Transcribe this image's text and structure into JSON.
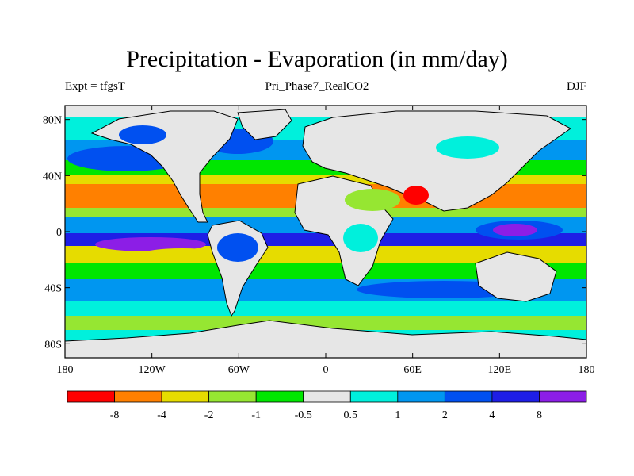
{
  "title": "Precipitation - Evaporation (in mm/day)",
  "subtitle_left": "Expt = tfgsT",
  "subtitle_center": "Pri_Phase7_RealCO2",
  "subtitle_right": "DJF",
  "colors": {
    "continent_fill": "#e6e6e6",
    "coastline": "#000000"
  },
  "chart_data": {
    "type": "heatmap",
    "xlim": [
      -180,
      180
    ],
    "ylim": [
      -90,
      90
    ],
    "x_ticks": [
      {
        "value": -180,
        "label": "180"
      },
      {
        "value": -120,
        "label": "120W"
      },
      {
        "value": -60,
        "label": "60W"
      },
      {
        "value": 0,
        "label": "0"
      },
      {
        "value": 60,
        "label": "60E"
      },
      {
        "value": 120,
        "label": "120E"
      },
      {
        "value": 180,
        "label": "180"
      }
    ],
    "y_ticks": [
      {
        "value": 80,
        "label": "80N"
      },
      {
        "value": 40,
        "label": "40N"
      },
      {
        "value": 0,
        "label": "0"
      },
      {
        "value": -40,
        "label": "40S"
      },
      {
        "value": -80,
        "label": "80S"
      }
    ],
    "colorbar": {
      "colors": [
        "#ff0000",
        "#ff8000",
        "#e6dc00",
        "#96e632",
        "#00e600",
        "#e6e6e6",
        "#00f0dc",
        "#0096f0",
        "#0050f0",
        "#1e1ee6",
        "#8c1ee6"
      ],
      "labels": [
        "-8",
        "-4",
        "-2",
        "-1",
        "-0.5",
        "0.5",
        "1",
        "2",
        "4",
        "8"
      ]
    }
  }
}
